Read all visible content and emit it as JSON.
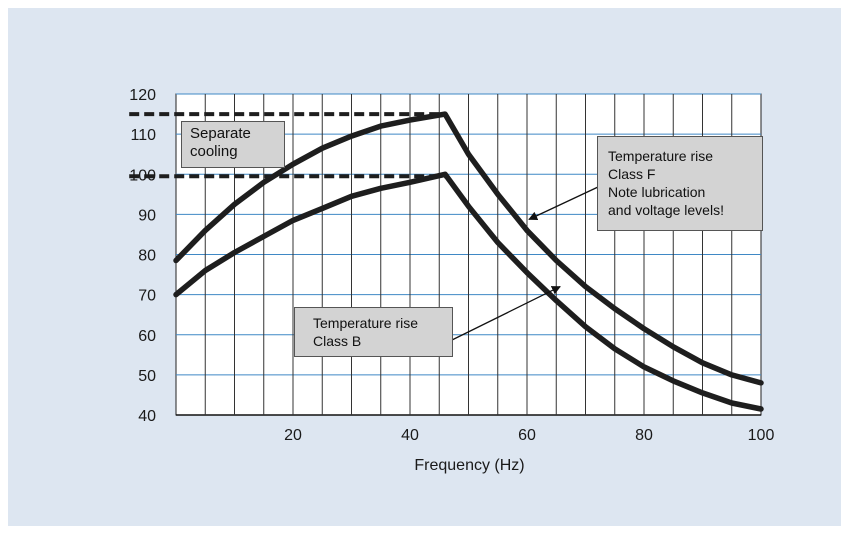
{
  "colors": {
    "panel_background": "#dde6f1",
    "plot_background": "#ffffff",
    "horizontal_grid": "#3f88c5",
    "vertical_grid": "#333333",
    "curve": "#1e1e1e",
    "callout_fill": "#d3d3d3"
  },
  "chart_data": {
    "type": "line",
    "title": "",
    "xlabel": "Frequency (Hz)",
    "ylabel": "",
    "xlim": [
      0,
      100
    ],
    "ylim": [
      40,
      120
    ],
    "xticks": [
      20,
      40,
      60,
      80,
      100
    ],
    "yticks": [
      40,
      50,
      60,
      70,
      80,
      90,
      100,
      110,
      120
    ],
    "grid": {
      "horizontal": true,
      "vertical": true,
      "vertical_step": 5
    },
    "legend": "none",
    "series": [
      {
        "style": "solid",
        "x": [
          0,
          5,
          10,
          15,
          20,
          25,
          30,
          35,
          40,
          46,
          50,
          55,
          60,
          65,
          70,
          75,
          80,
          85,
          90,
          95,
          100
        ],
        "y": [
          78.5,
          86,
          92.5,
          98,
          102.5,
          106.5,
          109.5,
          112,
          113.5,
          115,
          105,
          95,
          86,
          78.5,
          72,
          66.5,
          61.5,
          57,
          53,
          50,
          48
        ]
      },
      {
        "style": "solid",
        "x": [
          0,
          5,
          10,
          15,
          20,
          25,
          30,
          35,
          40,
          46,
          50,
          55,
          60,
          65,
          70,
          75,
          80,
          85,
          90,
          95,
          100
        ],
        "y": [
          70,
          76,
          80.5,
          84.5,
          88.5,
          91.5,
          94.5,
          96.5,
          98,
          100,
          92,
          83,
          75.5,
          68.5,
          62,
          56.5,
          52,
          48.5,
          45.5,
          43,
          41.5
        ]
      },
      {
        "style": "dashed",
        "x": [
          -8,
          46
        ],
        "y": [
          115,
          115
        ]
      },
      {
        "style": "dashed",
        "x": [
          -8,
          46
        ],
        "y": [
          99.5,
          99.5
        ]
      }
    ],
    "annotations": [
      {
        "lines": [
          "Separate",
          "cooling"
        ]
      },
      {
        "lines": [
          "Temperature rise",
          "Class F",
          "Note lubrication",
          "and voltage levels!"
        ],
        "arrow_to": {
          "x": 60,
          "y": 89
        }
      },
      {
        "lines": [
          "Temperature rise",
          "Class B"
        ],
        "arrow_to": {
          "x": 66,
          "y": 72
        }
      }
    ]
  }
}
